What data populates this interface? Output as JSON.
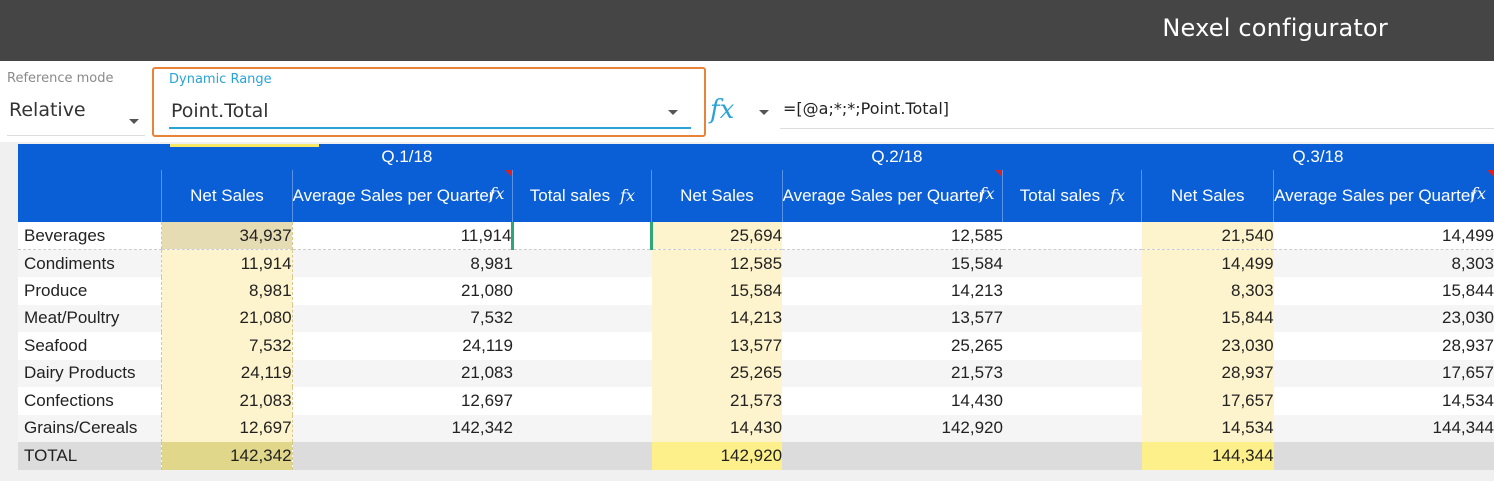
{
  "app": {
    "title": "Nexel configurator"
  },
  "toolbar": {
    "reference_mode": {
      "label": "Reference mode",
      "value": "Relative"
    },
    "dynamic_range": {
      "label": "Dynamic Range",
      "value": "Point.Total"
    },
    "formula": "=[@a;*;*;Point.Total]"
  },
  "colors": {
    "header_blue": "#0a5fd6",
    "accent_orange": "#e8833a",
    "accent_cyan": "#29a3d6"
  },
  "grid": {
    "quarters": [
      "Q.1/18",
      "Q.2/18",
      "Q.3/18"
    ],
    "columns": {
      "net_sales": "Net Sales",
      "avg_sales": "Average Sales per Quarter",
      "total_sales": "Total sales"
    },
    "rows": [
      {
        "category": "Beverages",
        "q1": [
          "34,937",
          "11,914",
          ""
        ],
        "q2": [
          "25,694",
          "12,585",
          ""
        ],
        "q3": [
          "21,540",
          "14,499"
        ]
      },
      {
        "category": "Condiments",
        "q1": [
          "11,914",
          "8,981",
          ""
        ],
        "q2": [
          "12,585",
          "15,584",
          ""
        ],
        "q3": [
          "14,499",
          "8,303"
        ]
      },
      {
        "category": "Produce",
        "q1": [
          "8,981",
          "21,080",
          ""
        ],
        "q2": [
          "15,584",
          "14,213",
          ""
        ],
        "q3": [
          "8,303",
          "15,844"
        ]
      },
      {
        "category": "Meat/Poultry",
        "q1": [
          "21,080",
          "7,532",
          ""
        ],
        "q2": [
          "14,213",
          "13,577",
          ""
        ],
        "q3": [
          "15,844",
          "23,030"
        ]
      },
      {
        "category": "Seafood",
        "q1": [
          "7,532",
          "24,119",
          ""
        ],
        "q2": [
          "13,577",
          "25,265",
          ""
        ],
        "q3": [
          "23,030",
          "28,937"
        ]
      },
      {
        "category": "Dairy Products",
        "q1": [
          "24,119",
          "21,083",
          ""
        ],
        "q2": [
          "25,265",
          "21,573",
          ""
        ],
        "q3": [
          "28,937",
          "17,657"
        ]
      },
      {
        "category": "Confections",
        "q1": [
          "21,083",
          "12,697",
          ""
        ],
        "q2": [
          "21,573",
          "14,430",
          ""
        ],
        "q3": [
          "17,657",
          "14,534"
        ]
      },
      {
        "category": "Grains/Cereals",
        "q1": [
          "12,697",
          "142,342",
          ""
        ],
        "q2": [
          "14,430",
          "142,920",
          ""
        ],
        "q3": [
          "14,534",
          "144,344"
        ]
      }
    ],
    "total": {
      "category": "TOTAL",
      "q1": [
        "142,342",
        "",
        ""
      ],
      "q2": [
        "142,920",
        "",
        ""
      ],
      "q3": [
        "144,344",
        ""
      ]
    }
  }
}
